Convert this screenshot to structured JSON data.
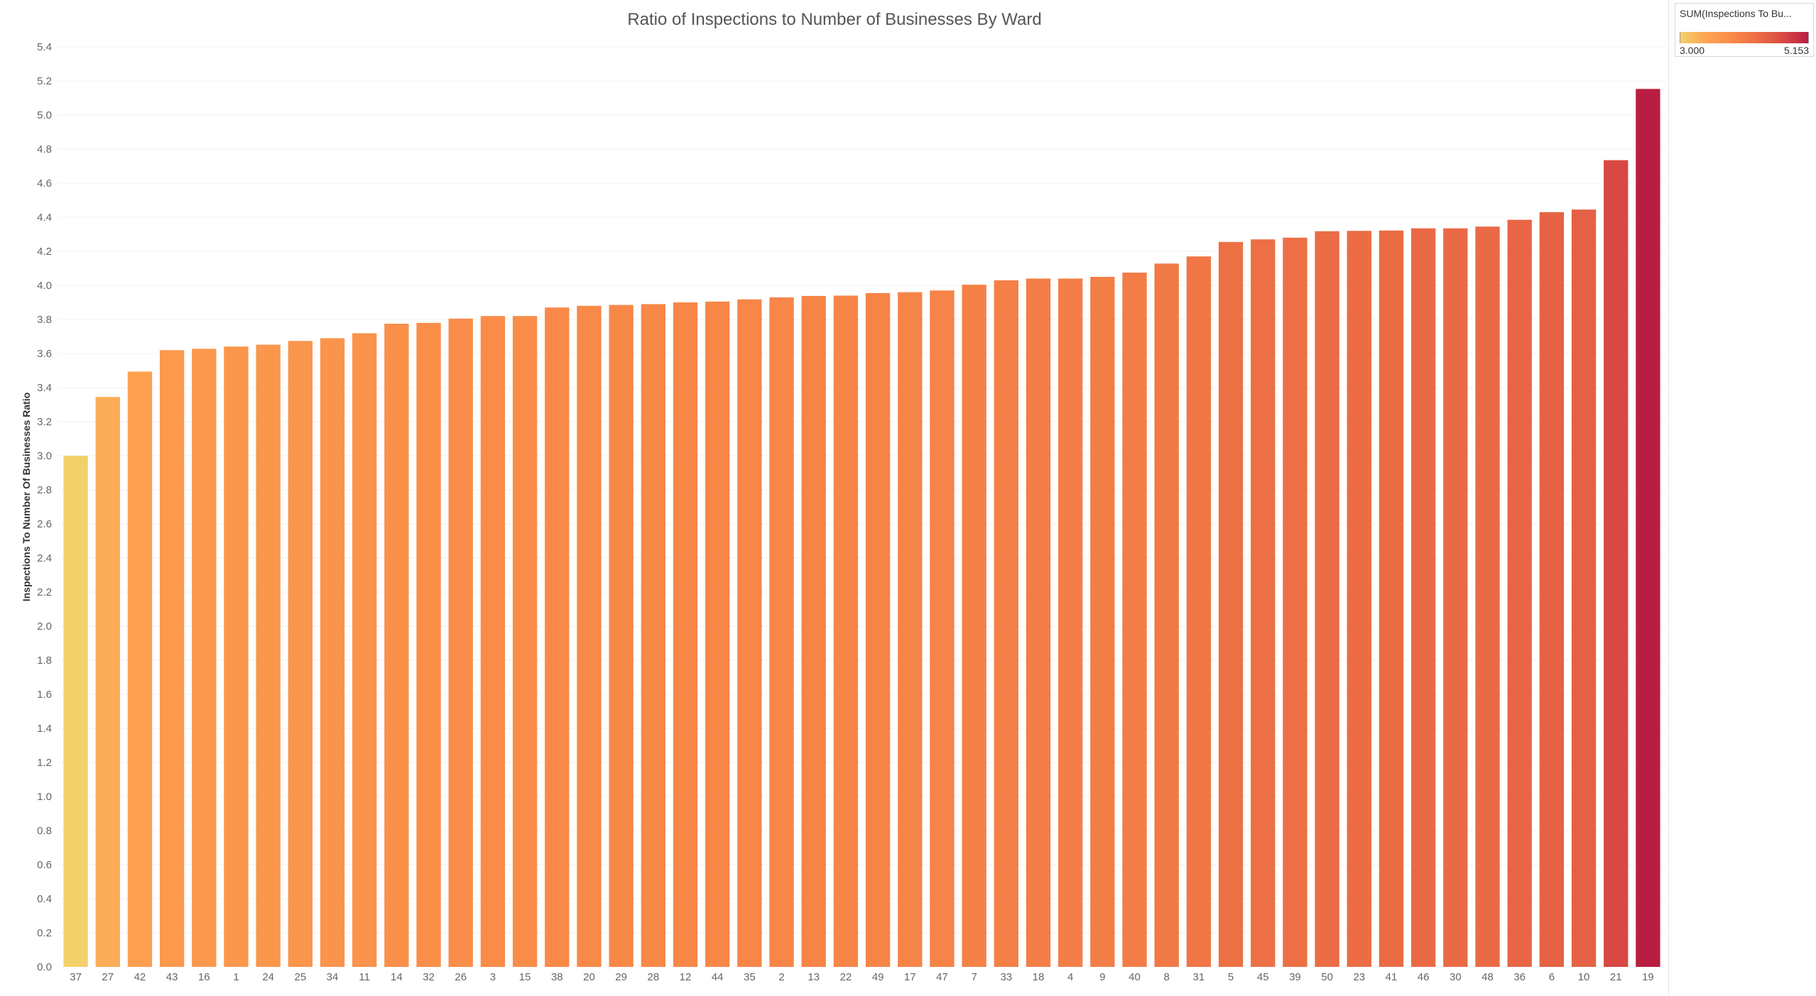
{
  "chart_data": {
    "type": "bar",
    "title": "Ratio of Inspections to Number of Businesses By Ward",
    "xlabel": "",
    "ylabel": "Inspections To Number Of Businesses Ratio",
    "ylim": [
      0,
      5.4
    ],
    "yticks": [
      0.0,
      0.2,
      0.4,
      0.6,
      0.8,
      1.0,
      1.2,
      1.4,
      1.6,
      1.8,
      2.0,
      2.2,
      2.4,
      2.6,
      2.8,
      3.0,
      3.2,
      3.4,
      3.6,
      3.8,
      4.0,
      4.2,
      4.4,
      4.6,
      4.8,
      5.0,
      5.2,
      5.4
    ],
    "ytick_labels": [
      "0.0",
      "0.2",
      "0.4",
      "0.6",
      "0.8",
      "1.0",
      "1.2",
      "1.4",
      "1.6",
      "1.8",
      "2.0",
      "2.2",
      "2.4",
      "2.6",
      "2.8",
      "3.0",
      "3.2",
      "3.4",
      "3.6",
      "3.8",
      "4.0",
      "4.2",
      "4.4",
      "4.6",
      "4.8",
      "5.0",
      "5.2",
      "5.4"
    ],
    "grid": true,
    "categories": [
      "37",
      "27",
      "42",
      "43",
      "16",
      "1",
      "24",
      "25",
      "34",
      "11",
      "14",
      "32",
      "26",
      "3",
      "15",
      "38",
      "20",
      "29",
      "28",
      "12",
      "44",
      "35",
      "2",
      "13",
      "22",
      "49",
      "17",
      "47",
      "7",
      "33",
      "18",
      "4",
      "9",
      "40",
      "8",
      "31",
      "5",
      "45",
      "39",
      "50",
      "23",
      "41",
      "46",
      "30",
      "48",
      "36",
      "6",
      "10",
      "21",
      "19"
    ],
    "values": [
      3.0,
      3.345,
      3.494,
      3.62,
      3.628,
      3.641,
      3.652,
      3.674,
      3.69,
      3.719,
      3.775,
      3.78,
      3.805,
      3.82,
      3.82,
      3.87,
      3.88,
      3.885,
      3.89,
      3.9,
      3.905,
      3.918,
      3.93,
      3.938,
      3.94,
      3.955,
      3.96,
      3.97,
      4.004,
      4.03,
      4.04,
      4.04,
      4.05,
      4.075,
      4.128,
      4.17,
      4.255,
      4.27,
      4.28,
      4.318,
      4.32,
      4.322,
      4.335,
      4.335,
      4.345,
      4.385,
      4.43,
      4.445,
      4.735,
      5.153
    ],
    "color_scale": {
      "min": 3.0,
      "max": 5.153,
      "stops": [
        "#f2d16a",
        "#fca451",
        "#f98a48",
        "#ec6e45",
        "#d94a44",
        "#b91e42"
      ]
    },
    "legend": {
      "title": "SUM(Inspections To Bu...",
      "min_label": "3.000",
      "max_label": "5.153",
      "position": "top-right"
    }
  }
}
